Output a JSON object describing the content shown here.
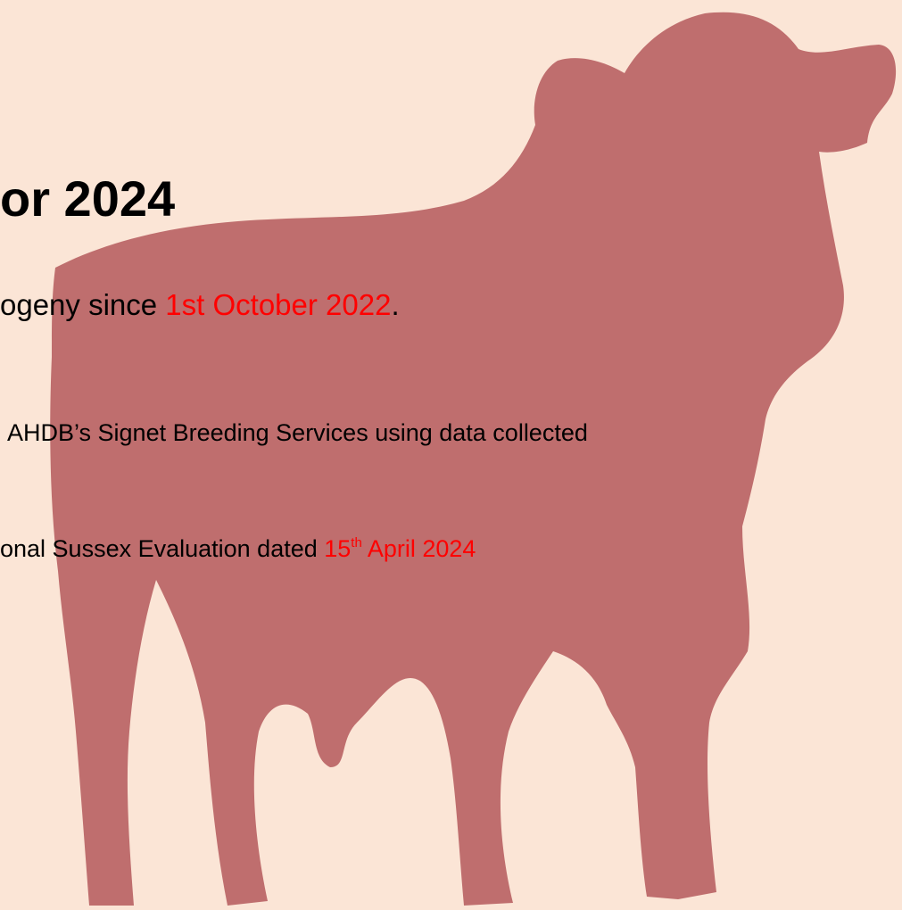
{
  "title": "or 2024",
  "line1": {
    "text": "ogeny since ",
    "date": "1st October 2022",
    "end": "."
  },
  "line2": {
    "text": "AHDB’s Signet Breeding Services using data collected"
  },
  "line3": {
    "text": "onal Sussex Evaluation dated ",
    "day": "15",
    "suffix": "th",
    "rest": " April 2024"
  }
}
